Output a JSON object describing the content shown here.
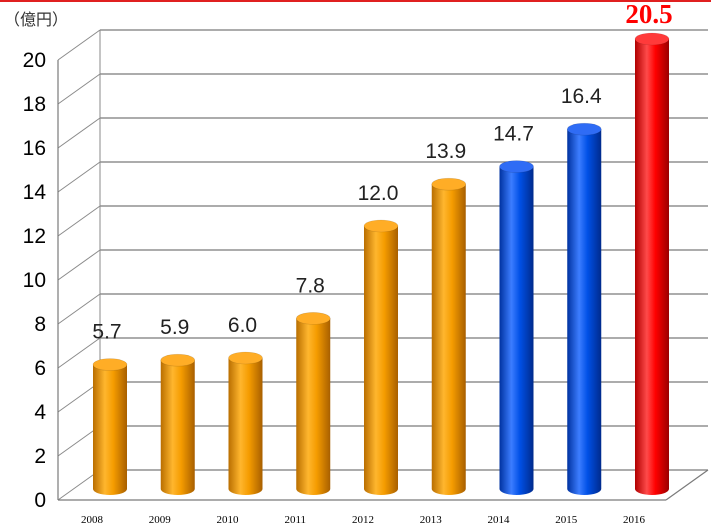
{
  "unit_label": "（億円）",
  "chart_data": {
    "type": "bar",
    "categories": [
      "2008",
      "2009",
      "2010",
      "2011",
      "2012",
      "2013",
      "2014",
      "2015",
      "2016"
    ],
    "values": [
      5.7,
      5.9,
      6.0,
      7.8,
      12.0,
      13.9,
      14.7,
      16.4,
      20.5
    ],
    "data_labels": [
      "5.7",
      "5.9",
      "6.0",
      "7.8",
      "12.0",
      "13.9",
      "14.7",
      "16.4",
      "20.5"
    ],
    "ylim": [
      0,
      20
    ],
    "yticks": [
      "0",
      "2",
      "4",
      "6",
      "8",
      "10",
      "12",
      "14",
      "16",
      "18",
      "20"
    ],
    "grid": true,
    "bar_colors": [
      "#f59c00",
      "#f59c00",
      "#f59c00",
      "#f59c00",
      "#f59c00",
      "#f59c00",
      "#0050e6",
      "#0050e6",
      "#ff0000"
    ],
    "highlight_label_color": "#ff0000"
  }
}
